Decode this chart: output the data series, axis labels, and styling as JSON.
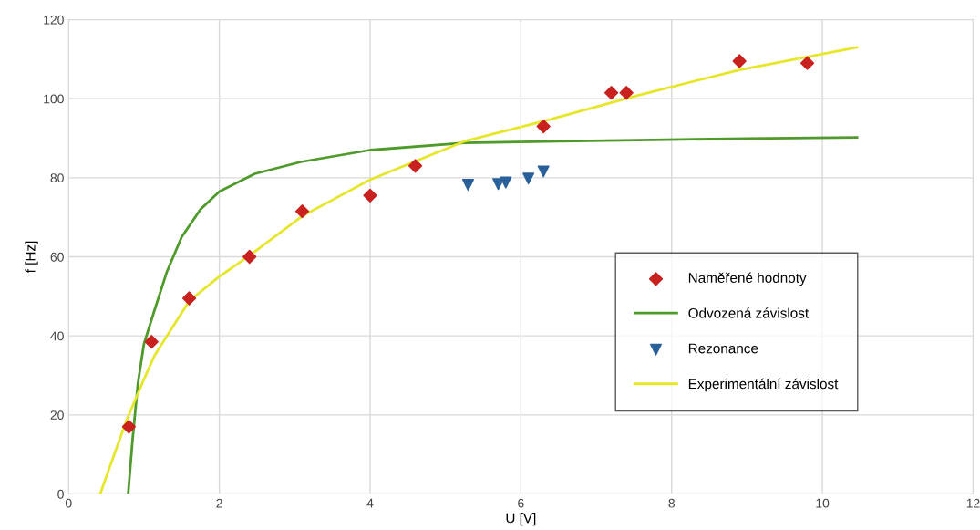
{
  "chart_data": {
    "type": "scatter",
    "xlabel": "U [V]",
    "ylabel": "f [Hz]",
    "xlim": [
      0,
      12
    ],
    "xticks": [
      0,
      2,
      4,
      6,
      8,
      10,
      12
    ],
    "ylim": [
      0,
      120
    ],
    "yticks": [
      0,
      20,
      40,
      60,
      80,
      100,
      120
    ],
    "grid": true,
    "legend": "lower right",
    "series": [
      {
        "name": "Naměřené hodnoty",
        "marker": "diamond",
        "color": "#c9211e",
        "x": [
          0.8,
          1.1,
          1.6,
          2.4,
          3.1,
          4.0,
          4.6,
          6.3,
          7.2,
          7.4,
          8.9,
          9.8
        ],
        "values": [
          17,
          38.5,
          49.5,
          60,
          71.5,
          75.5,
          83,
          93,
          101.5,
          101.5,
          109.5,
          109
        ]
      },
      {
        "name": "Odvozená závislost",
        "type": "line",
        "marker": "none",
        "color": "#4e9a2a",
        "x": [
          0.79,
          0.85,
          0.92,
          1.0,
          1.14,
          1.3,
          1.5,
          1.75,
          2.0,
          2.47,
          3.08,
          4.0,
          5.25,
          6.5,
          7.55,
          9.0,
          10.46
        ],
        "values": [
          0,
          14,
          28,
          38,
          46.5,
          56,
          65,
          72,
          76.5,
          81,
          84,
          87,
          88.8,
          89.2,
          89.5,
          89.9,
          90.2
        ]
      },
      {
        "name": "Rezonance",
        "marker": "triangle_down",
        "color": "#2a6099",
        "x": [
          5.3,
          5.7,
          5.8,
          6.1,
          6.3
        ],
        "values": [
          78.2,
          78.4,
          78.8,
          79.8,
          81.6
        ]
      },
      {
        "name": "Experimentální závislost",
        "type": "line",
        "marker": "none",
        "color": "#e6e62a",
        "x": [
          0.42,
          0.55,
          0.77,
          1.0,
          1.14,
          1.6,
          2.0,
          2.4,
          3.1,
          4.0,
          5.25,
          6.3,
          7.55,
          8.9,
          10.46
        ],
        "values": [
          0,
          7,
          18.7,
          29,
          35,
          48.8,
          55,
          60.3,
          70.3,
          79.5,
          89.2,
          94.3,
          100.8,
          107.3,
          113
        ]
      }
    ]
  }
}
